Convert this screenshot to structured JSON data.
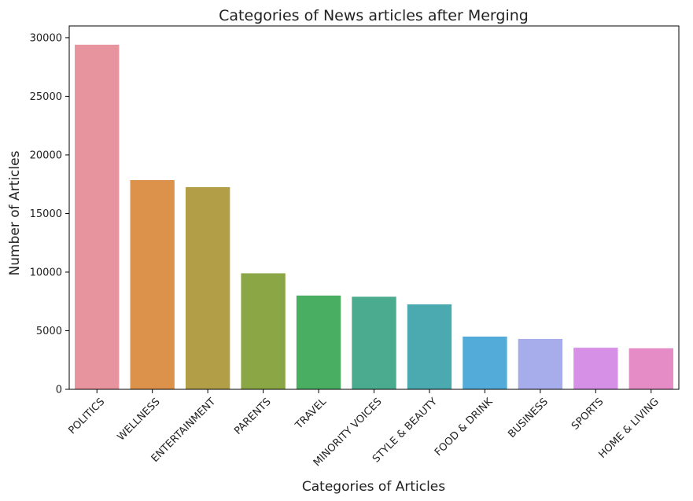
{
  "chart_data": {
    "type": "bar",
    "title": "Categories of News articles after Merging",
    "xlabel": "Categories of Articles",
    "ylabel": "Number of Articles",
    "categories": [
      "POLITICS",
      "WELLNESS",
      "ENTERTAINMENT",
      "PARENTS",
      "TRAVEL",
      "MINORITY VOICES",
      "STYLE & BEAUTY",
      "FOOD & DRINK",
      "BUSINESS",
      "SPORTS",
      "HOME & LIVING"
    ],
    "values": [
      29400,
      17850,
      17250,
      9900,
      8000,
      7900,
      7250,
      4500,
      4300,
      3550,
      3500
    ],
    "colors": [
      "#e8949f",
      "#dd924c",
      "#b19e47",
      "#8ba645",
      "#4aae62",
      "#4bab8f",
      "#4aaab0",
      "#53abd9",
      "#a7acea",
      "#d691e6",
      "#e58cc7"
    ],
    "ylim": [
      0,
      31000
    ],
    "yticks": [
      0,
      5000,
      10000,
      15000,
      20000,
      25000,
      30000
    ],
    "grid": false,
    "legend": "none"
  }
}
